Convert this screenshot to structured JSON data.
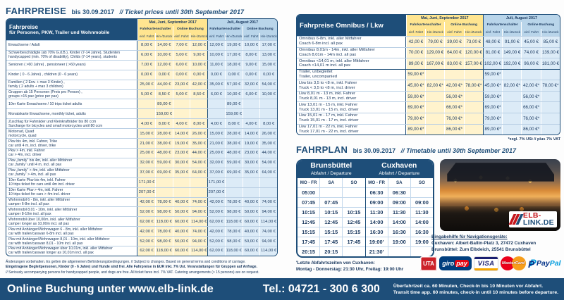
{
  "colors": {
    "navy": "#1e4e79",
    "yellow_header": "#ffe590",
    "yellow_cell": "#fff3cd",
    "blue_header": "#b9d5ea",
    "blue_cell": "#dcebf7",
    "red": "#cc2229"
  },
  "fahrpreise_title": {
    "word": "FAHRPREISE",
    "dates": "bis 30.09.2017",
    "en": "// Ticket prices until 30th September 2017"
  },
  "fahrplan_title": {
    "word": "FAHRPLAN",
    "dates": "bis 30.09.2017",
    "en": "// Timetable until 30th September 2017"
  },
  "price_header": {
    "season1": "Mai, Juni, September 2017",
    "season2": "Juli, August 2017",
    "counter": "Fahrkartenschalter",
    "online": "Online Buchung",
    "single": "einf. Fahrt",
    "return": "Hin-/Zurück"
  },
  "passenger_table": {
    "title1": "Fahrpreise",
    "title2": "für Personen, PKW, Trailer und Wohnmobile",
    "rows": [
      {
        "de": "Erwachsene / Adult",
        "en": "",
        "v": [
          "8,00 €",
          "14,00 €",
          "7,00 €",
          "12,00 €",
          "12,00 €",
          "19,00 €",
          "10,00 €",
          "17,00 €"
        ]
      },
      {
        "de": "Schwerbeschädigte (ab 70% G.d.B.), Kinder (7-14 Jahre), Studenten",
        "en": "handycapped (min. 70% of disability), Childs (7-14 years), students",
        "v": [
          "6,00 €",
          "10,00 €",
          "5,00 €",
          "9,00 €",
          "10,00 €",
          "17,00 €",
          "8,00 €",
          "13,00 €"
        ]
      },
      {
        "de": "Senioren ( >60 Jahre) , pensioneer ( >60 years)",
        "en": "",
        "v": [
          "7,00 €",
          "12,00 €",
          "6,00 €",
          "10,00 €",
          "11,00 €",
          "18,00 €",
          "9,00 €",
          "15,00 €"
        ]
      },
      {
        "de": "Kinder ( 0 - 6 Jahre) , children (0 - 6 years)",
        "en": "",
        "v": [
          "0,00 €",
          "0,00 €",
          "0,00 €",
          "0,00 €",
          "0,00 €",
          "0,00 €",
          "0,00 €",
          "0,00 €"
        ]
      },
      {
        "de": "Familien ( 2 Erw. + max 3 Kinder) ,",
        "en": "family ( 2 adults + max 3 children)",
        "v": [
          "25,00 €",
          "44,00 €",
          "23,00 €",
          "42,00 €",
          "35,00 €",
          "57,00 €",
          "32,00 €",
          "54,00 €"
        ]
      },
      {
        "de": "Gruppen ab 15 Personen (Preis pro Person) ,",
        "en": "groups >15 pax (price per pax)",
        "v": [
          "5,00 €",
          "8,50 €",
          "5,00 €",
          "8,50 €",
          "6,00 €",
          "10,00 €",
          "6,00 €",
          "10,00 €"
        ]
      },
      {
        "de": "10er Karte Erwachsene / 10 trips ticket adults",
        "en": "",
        "v": [
          "",
          "89,00 €",
          "",
          "",
          "",
          "89,00 €",
          "",
          ""
        ]
      },
      {
        "de": "Monatskarte Erwachsene, monthly ticket, adults",
        "en": "",
        "v": [
          "",
          "159,00 €",
          "",
          "",
          "",
          "159,00 €",
          "",
          ""
        ]
      },
      {
        "de": "Zuschlag für Fahrräder und Kleinkrafträder bis 80 ccm",
        "en": "Surcharge for bicycles and small motorcycles until 80 ccm",
        "v": [
          "4,00 €",
          "8,00 €",
          "4,00 €",
          "8,00 €",
          "4,00 €",
          "8,00 €",
          "4,00 €",
          "8,00 €"
        ]
      },
      {
        "de": "Motorrad, Quad",
        "en": "motorcycle, quad",
        "v": [
          "15,00 €",
          "28,00 €",
          "14,00 €",
          "26,00 €",
          "15,00 €",
          "28,00 €",
          "14,00 €",
          "26,00 €"
        ]
      },
      {
        "de": "Pkw bis 4m, inkl. Fahrer, Trike",
        "en": "car until 4 m, incl. driver, trike",
        "v": [
          "21,00 €",
          "38,00 €",
          "19,00 €",
          "35,00 €",
          "21,00 €",
          "38,00 €",
          "19,00 €",
          "35,00 €"
        ]
      },
      {
        "de": "Pkw > 4m, inkl. Fahrer",
        "en": "car > 4m, incl. driver",
        "v": [
          "25,00 €",
          "48,00 €",
          "23,00 €",
          "44,00 €",
          "25,00 €",
          "48,00 €",
          "23,00 €",
          "44,00 €"
        ]
      },
      {
        "de": "Pkw „family“ bis 4m, inkl. aller Mitfahrer",
        "en": "car „family“ until 4 m, incl. all pax",
        "v": [
          "32,00 €",
          "59,00 €",
          "30,00 €",
          "54,00 €",
          "32,00 €",
          "59,00 €",
          "30,00 €",
          "54,00 €"
        ]
      },
      {
        "de": "Pkw „family“ > 4m, inkl. aller Mitfahrer",
        "en": "car „family“ > 4m, incl. all pax",
        "v": [
          "37,00 €",
          "69,00 €",
          "35,00 €",
          "64,00 €",
          "37,00 €",
          "69,00 €",
          "35,00 €",
          "64,00 €"
        ]
      },
      {
        "de": "10er Karte Pkw bis 4m, inkl. Fahrer",
        "en": "10 trips ticket for cars until 4m incl. driver",
        "v": [
          "171,00 €",
          "",
          "",
          "",
          "171,00 €",
          "",
          "",
          ""
        ]
      },
      {
        "de": "10er Karte Pkw > 4m, inkl. Fahrer",
        "en": "10 trips ticket for cars > 4m incl. driver",
        "v": [
          "207,00 €",
          "",
          "",
          "",
          "207,00 €",
          "",
          "",
          ""
        ]
      },
      {
        "de": "Wohnmobil 6 - 8m, inkl. aller Mitfahrer",
        "en": "camper 6-8m incl. all pax",
        "v": [
          "42,00 €",
          "78,00 €",
          "40,00 €",
          "74,00 €",
          "42,00 €",
          "78,00 €",
          "40,00 €",
          "74,00 €"
        ]
      },
      {
        "de": "Wohnmobil 8,01 - 10m, inkl. aller Mitfahrer",
        "en": "camper 8-10m incl. all pax",
        "v": [
          "52,00 €",
          "98,00 €",
          "50,00 €",
          "94,00 €",
          "52,00 €",
          "98,00 €",
          "50,00 €",
          "94,00 €"
        ]
      },
      {
        "de": "Wohnmobil über 10,00m, inkl. aller Mitfahrer",
        "en": "camper longer as 10,00m incl. all pax",
        "v": [
          "62,00 €",
          "118,00 €",
          "60,00 €",
          "114,00 €",
          "62,00 €",
          "118,00 €",
          "60,00 €",
          "114,00 €"
        ]
      },
      {
        "de": "Pkw mit Anhänger/Wohnwagen 6 - 8m, inkl. aller Mitfahrer",
        "en": "car with trailer/caravan 6-8m incl. all pax",
        "v": [
          "42,00 €",
          "78,00 €",
          "40,00 €",
          "74,00 €",
          "42,00 €",
          "78,00 €",
          "40,00 €",
          "74,00 €"
        ]
      },
      {
        "de": "Pkw mit Anhänger/Wohnwagen 8,01 - 10m, inkl. aller Mitfahrer",
        "en": "car with trailer/caravan 8,01 - 10m incl. all pax",
        "v": [
          "52,00 €",
          "98,00 €",
          "50,00 €",
          "94,00 €",
          "52,00 €",
          "98,00 €",
          "50,00 €",
          "94,00 €"
        ]
      },
      {
        "de": "Pkw mit Anhänger/Wohnwagen über 10,01m, inkl. aller Mitfahrer",
        "en": "car with trailer/caravan longer as 10,01m incl. all pax",
        "v": [
          "62,00 €",
          "118,00 €",
          "60,00 €",
          "114,00 €",
          "62,00 €",
          "118,00 €",
          "60,00 €",
          "114,00 €"
        ]
      }
    ]
  },
  "omnibus_table": {
    "title1": "Fahrpreise Omnibus / Lkw",
    "footnote": "*zzgl. 7% USt // plus 7% VAT",
    "rows": [
      {
        "de": "Omnibus 6-8m, inkl. aller Mitfahrer",
        "en": "Coach 6-8m incl. all pax",
        "v": [
          "42,00 €",
          "79,00 €",
          "39,00 €",
          "73,00 €",
          "48,00 €",
          "91,00 €",
          "45,00 €",
          "85,00 €"
        ]
      },
      {
        "de": "Omnibus 8,01m - 14m, inkl. aller Mitfahrer",
        "en": "Coach 8,01m - 14m incl. all pax",
        "v": [
          "70,00 €",
          "129,00 €",
          "64,00 €",
          "120,00 €",
          "81,00 €",
          "149,00 €",
          "74,00 €",
          "139,00 €"
        ]
      },
      {
        "de": "Omnibus <14,01 m, inkl. aller Mitfahrer",
        "en": "Coach <14,01 m incl. all pax",
        "v": [
          "89,00 €",
          "167,00 €",
          "83,00 €",
          "157,00 €",
          "102,00 €",
          "192,00 €",
          "96,00 €",
          "181,00 €"
        ]
      },
      {
        "de": "Trailer, unbegleitet",
        "en": "Trailer, uncompanied",
        "group_start": true,
        "v": [
          "59,00 €*",
          "",
          "",
          "",
          "59,00 €*",
          "",
          "",
          ""
        ]
      },
      {
        "de": "Lkw bis 3,5 to <8 m, inkl. Fahrer",
        "en": "Truck < 3,5 to <8 m, incl. driver",
        "v": [
          "45,00 €*",
          "82,00 €*",
          "42,00 €*",
          "78,00 €*",
          "45,00 €*",
          "82,00 €*",
          "42,00 €*",
          "78,00 €*"
        ]
      },
      {
        "de": "Lkw 8,01 m - 13 m, inkl. Fahrer",
        "en": "Truck 8,01 m - 13 m, incl. driver",
        "v": [
          "59,00 €*",
          "",
          "56,00 €*",
          "",
          "59,00 €*",
          "",
          "56,00 €*",
          ""
        ]
      },
      {
        "de": "Lkw 13,01 m - 15 m, inkl. Fahrer",
        "en": "Truck 13,01 m - 15 m, incl. driver",
        "v": [
          "69,00 €*",
          "",
          "66,00 €*",
          "",
          "69,00 €*",
          "",
          "66,00 €*",
          ""
        ]
      },
      {
        "de": "Lkw 15,01 m - 17 m, inkl. Fahrer",
        "en": "Truck 15,01 m - 17 m, incl. driver",
        "v": [
          "79,00 €*",
          "",
          "76,00 €*",
          "",
          "79,00 €*",
          "",
          "76,00 €*",
          ""
        ]
      },
      {
        "de": "Lkw 17,01 m - 22 m, inkl. Fahrer",
        "en": "Truck 17,01 m - 22 m, incl. driver",
        "v": [
          "89,00 €*",
          "",
          "86,00 €*",
          "",
          "89,00 €*",
          "",
          "86,00 €*",
          ""
        ]
      }
    ]
  },
  "fahrplan": {
    "brunsbuettel": {
      "city": "Brunsbüttel",
      "sub": "Abfahrt / Departure",
      "days": [
        "MO - FR",
        "SA",
        "SO"
      ],
      "rows": [
        [
          "05:00",
          "",
          ""
        ],
        [
          "07:45",
          "07:45",
          ""
        ],
        [
          "10:15",
          "10:15",
          "10:15"
        ],
        [
          "12:45",
          "12:45",
          "12:45"
        ],
        [
          "15:15",
          "15:15",
          "15:15"
        ],
        [
          "17:45",
          "17:45",
          "17:45"
        ],
        [
          "20:15",
          "20:15",
          ""
        ]
      ]
    },
    "cuxhaven": {
      "city": "Cuxhaven",
      "sub": "Abfahrt / Departure",
      "days": [
        "MO - FR",
        "SA",
        "SO"
      ],
      "rows": [
        [
          "06:30",
          "06:30",
          ""
        ],
        [
          "09:00",
          "09:00",
          "09:00"
        ],
        [
          "11:30",
          "11:30",
          "11:30"
        ],
        [
          "14:00",
          "14:00",
          "14:00"
        ],
        [
          "16:30",
          "16:30",
          "16:30"
        ],
        [
          "19:00'",
          "19:00",
          "19:00"
        ],
        [
          "21:30'",
          "",
          ""
        ]
      ]
    },
    "footnote1": "'Letzte Abfahrtszeiten von Cuxhaven:",
    "footnote2": "Montag - Donnerstag: 21:30 Uhr, Freitag: 19:00 Uhr"
  },
  "conditions": {
    "line1": "Änderungen vorbehalten. Es gelten die allgemeinen Beförderungsbedingungen. // Subject to changes. Based on general terms and conditions of carriage.",
    "line2": "Eingetragene Begleitpersonen, Kinder (0 - 6 Jahre) und Hunde sind frei. Alle Fahrpreise in EUR inkl. 7% Ust. Veranstaltungen für Gruppen auf Anfrage.",
    "line3": "// Seriously accompanying persons for handycapped people, and dogs are free. All ticket fares incl. 7% VAT. Catering arrangements (> 15 persons) are on request."
  },
  "navigation": {
    "heading": "Eingabehilfe für Navigationsgeräte:",
    "line1": "Cuxhaven: Albert-Ballin-Platz 3, 27472 Cuxhaven",
    "line2": "Brunsbüttel: Zum Elbdeich, 25541 Brunsbüttel"
  },
  "logo": {
    "line1": "ELB-",
    "line2": "LINK.DE"
  },
  "payments": {
    "uta": "UTA",
    "giro": "giro",
    "pay": "pay",
    "visa": "VISA",
    "mastercard": "MasterCard",
    "paypal_p": "P",
    "paypal_pay": "Pay",
    "paypal_pal": "Pal"
  },
  "bottom_bar": {
    "booking": "Online Buchung unter www.elb-link.de",
    "phone": "Tel.: 04721 - 300 6 300",
    "transit_de": "Überfahrtzeit ca. 60 Minuten, Check-In bis 10 Minuten vor Abfahrt.",
    "transit_en": "Transit time app. 60 minutes, check-in until 10 minutes before departure."
  }
}
